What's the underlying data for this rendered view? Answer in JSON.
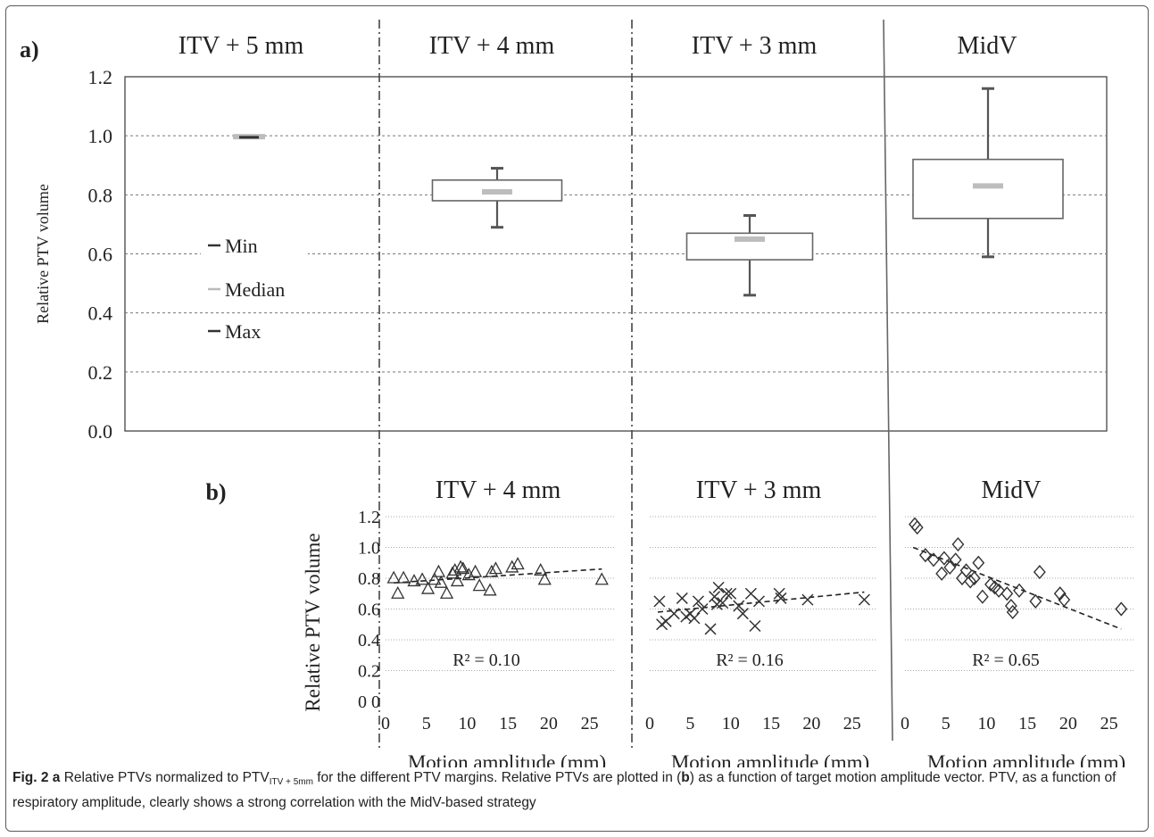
{
  "figure": {
    "panel_a_label": "a)",
    "panel_b_label": "b)",
    "strategies": [
      "ITV + 5 mm",
      "ITV + 4 mm",
      "ITV + 3 mm",
      "MidV"
    ],
    "legend": {
      "min": "Min",
      "median": "Median",
      "max": "Max"
    }
  },
  "caption": {
    "fig_label": "Fig. 2",
    "a": "a",
    "part1": " Relative PTVs normalized to PTV",
    "sub": "ITV + 5mm",
    "part2": " for the different PTV margins. Relative PTVs are plotted in (",
    "b": "b",
    "part3": ") as a function of target motion amplitude vector. PTV, as a function of respiratory amplitude, clearly shows a strong correlation with the MidV-based strategy"
  },
  "chart_data": [
    {
      "type": "box",
      "panel": "a",
      "categories": [
        "ITV + 5 mm",
        "ITV + 4 mm",
        "ITV + 3 mm",
        "MidV"
      ],
      "ylabel": "Relative PTV volume",
      "ylim": [
        0,
        1.2
      ],
      "yticks": [
        "0.0",
        "0.2",
        "0.4",
        "0.6",
        "0.8",
        "1.0",
        "1.2"
      ],
      "grid": true,
      "legend": [
        "Min",
        "Median",
        "Max"
      ],
      "boxes": [
        {
          "name": "ITV + 5 mm",
          "min": 0.99,
          "q1": 0.99,
          "median": 0.995,
          "q3": 1.0,
          "max": 1.0
        },
        {
          "name": "ITV + 4 mm",
          "min": 0.69,
          "q1": 0.78,
          "median": 0.81,
          "q3": 0.85,
          "max": 0.89
        },
        {
          "name": "ITV + 3 mm",
          "min": 0.46,
          "q1": 0.58,
          "median": 0.65,
          "q3": 0.67,
          "max": 0.73
        },
        {
          "name": "MidV",
          "min": 0.59,
          "q1": 0.72,
          "median": 0.83,
          "q3": 0.92,
          "max": 1.16
        }
      ]
    },
    {
      "type": "scatter",
      "panel": "b",
      "title": "ITV + 4 mm",
      "xlabel": "Motion amplitude (mm)",
      "ylabel": "Relative PTV volume",
      "xticks": [
        "0",
        "5",
        "10",
        "15",
        "20",
        "25"
      ],
      "yticks": [
        "0 0",
        "0.2",
        "0.4",
        "0.6",
        "0.8",
        "1.0",
        "1.2"
      ],
      "xlim": [
        0,
        28
      ],
      "ylim": [
        0,
        1.2
      ],
      "marker": "triangle",
      "annotation": "R² = 0.10",
      "trend": [
        [
          1,
          0.77
        ],
        [
          26.5,
          0.86
        ]
      ],
      "x": [
        1,
        1.5,
        2.2,
        3.5,
        4.5,
        5.2,
        6,
        6.5,
        6.8,
        7.5,
        8.2,
        8.5,
        8.8,
        9.2,
        9.5,
        10.2,
        11,
        11.5,
        12.8,
        13,
        13.5,
        15.5,
        16.2,
        19,
        19.5,
        26.5
      ],
      "y": [
        0.8,
        0.7,
        0.8,
        0.78,
        0.79,
        0.73,
        0.79,
        0.84,
        0.77,
        0.7,
        0.83,
        0.85,
        0.78,
        0.87,
        0.86,
        0.82,
        0.84,
        0.75,
        0.72,
        0.84,
        0.86,
        0.87,
        0.89,
        0.85,
        0.79,
        0.79
      ]
    },
    {
      "type": "scatter",
      "panel": "b",
      "title": "ITV + 3 mm",
      "xlabel": "Motion amplitude (mm)",
      "xticks": [
        "0",
        "5",
        "10",
        "15",
        "20",
        "25"
      ],
      "xlim": [
        0,
        28
      ],
      "ylim": [
        0,
        1.2
      ],
      "marker": "x",
      "annotation": "R² = 0.16",
      "trend": [
        [
          1,
          0.58
        ],
        [
          26.5,
          0.71
        ]
      ],
      "x": [
        1.2,
        1.5,
        2,
        3,
        4,
        4.5,
        5,
        5.5,
        6,
        6.5,
        7.5,
        8,
        8.3,
        8.5,
        9,
        9.5,
        10,
        11,
        11.5,
        12.5,
        13,
        13.5,
        16,
        16.2,
        19.5,
        26.5
      ],
      "y": [
        0.65,
        0.5,
        0.52,
        0.57,
        0.67,
        0.55,
        0.57,
        0.54,
        0.65,
        0.6,
        0.47,
        0.68,
        0.63,
        0.74,
        0.64,
        0.7,
        0.7,
        0.62,
        0.57,
        0.7,
        0.49,
        0.65,
        0.7,
        0.67,
        0.66,
        0.66
      ]
    },
    {
      "type": "scatter",
      "panel": "b",
      "title": "MidV",
      "xlabel": "Motion amplitude (mm)",
      "xticks": [
        "0",
        "5",
        "10",
        "15",
        "20",
        "25"
      ],
      "xlim": [
        0,
        28
      ],
      "ylim": [
        0,
        1.2
      ],
      "marker": "diamond",
      "annotation": "R² = 0.65",
      "trend": [
        [
          1,
          1.0
        ],
        [
          26.5,
          0.47
        ]
      ],
      "x": [
        1.2,
        1.5,
        2.5,
        3.5,
        4.5,
        4.8,
        5.5,
        6.2,
        6.5,
        7,
        7.5,
        8,
        8.5,
        9,
        9.5,
        10.5,
        11,
        11.5,
        12.5,
        13,
        13.2,
        14,
        16,
        16.5,
        19,
        19.5,
        26.5
      ],
      "y": [
        1.15,
        1.13,
        0.95,
        0.92,
        0.83,
        0.93,
        0.87,
        0.92,
        1.02,
        0.8,
        0.85,
        0.78,
        0.8,
        0.9,
        0.68,
        0.76,
        0.74,
        0.72,
        0.7,
        0.62,
        0.58,
        0.72,
        0.65,
        0.84,
        0.7,
        0.66,
        0.6
      ]
    }
  ]
}
